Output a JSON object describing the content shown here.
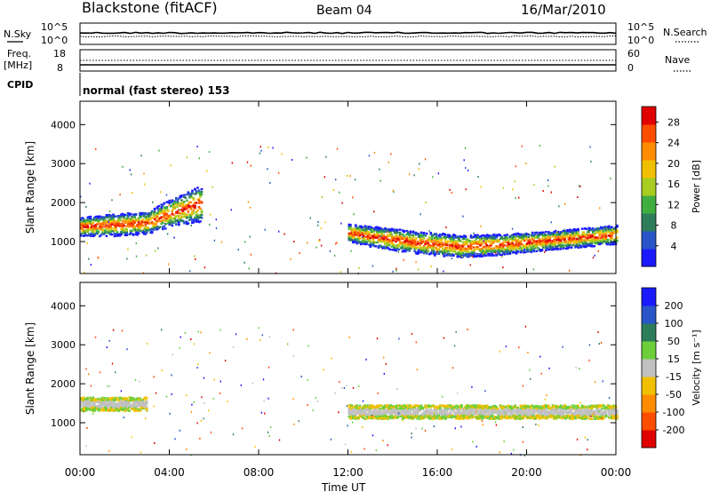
{
  "header": {
    "title": "Blackstone (fitACF)",
    "beam": "Beam 04",
    "date": "16/Mar/2010"
  },
  "noise_panel": {
    "left_label": "N.Sky",
    "left_ticks": [
      "10^5",
      "10^0"
    ],
    "right_label": "N.Search",
    "right_ticks": [
      "10^5",
      "10^0"
    ]
  },
  "freq_panel": {
    "left_label_1": "Freq.",
    "left_label_2": "[MHz]",
    "left_ticks": [
      "18",
      "8"
    ],
    "right_label": "Nave",
    "right_ticks": [
      "60",
      "0"
    ]
  },
  "cpid_panel": {
    "label": "CPID",
    "text": "normal (fast stereo) 153"
  },
  "chart_data": [
    {
      "type": "heatmap",
      "title": "",
      "xlabel": "Time UT",
      "ylabel": "Slant Range [km]",
      "xticks": [
        "00:00",
        "04:00",
        "08:00",
        "12:00",
        "16:00",
        "20:00",
        "00:00"
      ],
      "xlim_hours": [
        0,
        24
      ],
      "ylim": [
        180,
        4600
      ],
      "yticks": [
        1000,
        2000,
        3000,
        4000
      ],
      "colorbar": {
        "label": "Power [dB]",
        "ticks": [
          4,
          8,
          12,
          16,
          20,
          24,
          28
        ],
        "range": [
          0,
          31
        ],
        "colors": [
          "#1a1aff",
          "#2a55c8",
          "#2e7d5a",
          "#3fae3f",
          "#a8cc20",
          "#f0c000",
          "#ff8c00",
          "#ff4d00",
          "#e00000"
        ]
      },
      "features": [
        {
          "name": "morning band",
          "t": [
            0.0,
            1.5,
            3.0,
            4.0,
            5.4
          ],
          "r": [
            1400,
            1450,
            1500,
            1750,
            2000
          ],
          "w": [
            220,
            260,
            260,
            320,
            420
          ]
        },
        {
          "name": "afternoon band",
          "t": [
            12.0,
            13.0,
            15.0,
            17.0,
            19.0,
            21.0,
            23.0,
            24.0
          ],
          "r": [
            1250,
            1150,
            1000,
            900,
            950,
            1050,
            1150,
            1200
          ],
          "w": [
            200,
            240,
            260,
            260,
            240,
            220,
            220,
            220
          ]
        }
      ],
      "grid": false
    },
    {
      "type": "heatmap",
      "title": "",
      "xlabel": "Time UT",
      "ylabel": "Slant Range [km]",
      "xticks": [
        "00:00",
        "04:00",
        "08:00",
        "12:00",
        "16:00",
        "20:00",
        "00:00"
      ],
      "xlim_hours": [
        0,
        24
      ],
      "ylim": [
        180,
        4600
      ],
      "yticks": [
        1000,
        2000,
        3000,
        4000
      ],
      "colorbar": {
        "label": "Velocity [m s⁻¹]",
        "ticks": [
          200,
          100,
          50,
          15,
          -15,
          -50,
          -100,
          -200
        ],
        "colors": [
          "#1a1aff",
          "#2a55c8",
          "#2e7d5a",
          "#6ccf3a",
          "#c0c0c0",
          "#f0c000",
          "#ff8c00",
          "#ff4d00",
          "#e00000"
        ]
      },
      "features": [
        {
          "name": "ground scatter morning",
          "t": [
            0.0,
            3.0
          ],
          "r": [
            1500,
            1500
          ],
          "w": [
            160,
            160
          ]
        },
        {
          "name": "ground scatter afternoon",
          "t": [
            12.0,
            24.0
          ],
          "r": [
            1300,
            1300
          ],
          "w": [
            160,
            160
          ]
        }
      ],
      "grid": false
    }
  ]
}
